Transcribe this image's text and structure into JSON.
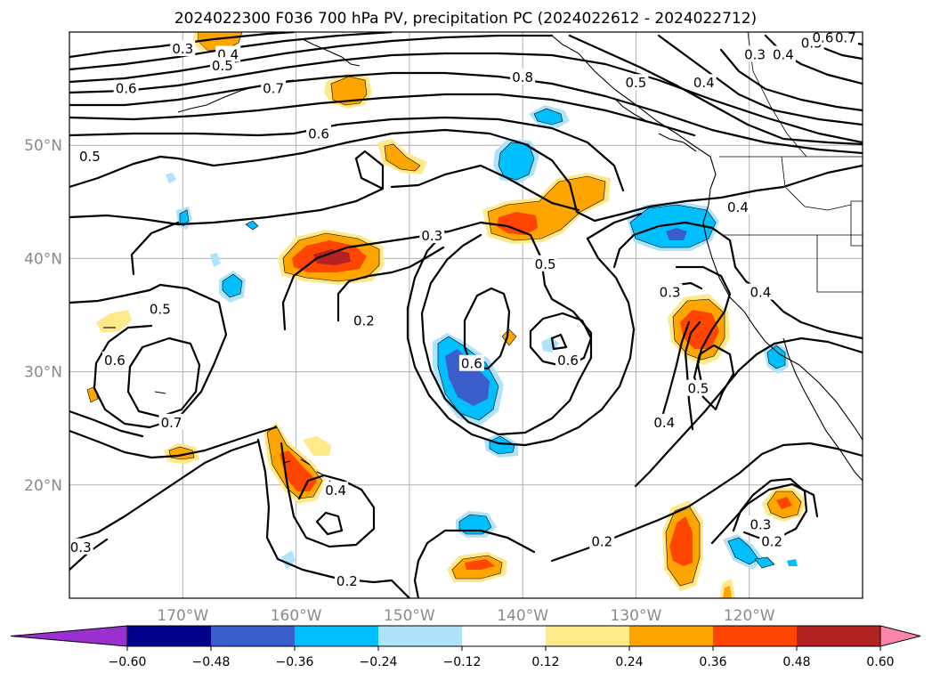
{
  "chart_data": {
    "type": "contour map with filled contours",
    "title": "2024022300 F036 700 hPa PV, precipitation PC (2024022612 - 2024022712)",
    "lon_range": [
      -180,
      -110
    ],
    "lat_range": [
      10,
      60
    ],
    "lon_ticks": [
      -170,
      -160,
      -150,
      -140,
      -130,
      -120
    ],
    "lon_tick_labels": [
      "170°W",
      "160°W",
      "150°W",
      "140°W",
      "130°W",
      "120°W"
    ],
    "lat_ticks": [
      20,
      30,
      40,
      50
    ],
    "lat_tick_labels": [
      "20°N",
      "30°N",
      "40°N",
      "50°N"
    ],
    "grid": true,
    "colorbar": {
      "orientation": "horizontal",
      "extend": "both",
      "levels": [
        -0.6,
        -0.48,
        -0.36,
        -0.24,
        -0.12,
        0.12,
        0.24,
        0.36,
        0.48,
        0.6
      ],
      "tick_labels": [
        "−0.60",
        "−0.48",
        "−0.36",
        "−0.24",
        "−0.12",
        "0.12",
        "0.24",
        "0.36",
        "0.48",
        "0.60"
      ],
      "colors": [
        "#9b30d0",
        "#00008b",
        "#3a5fcd",
        "#00bfff",
        "#aee3fa",
        "#ffffff",
        "#ffe98a",
        "#ffa500",
        "#ff4500",
        "#b22222",
        "#ff85a8"
      ]
    },
    "pv_contour_labels": [
      {
        "lon": -170,
        "lat": 58.5,
        "text": "0.3"
      },
      {
        "lon": -166,
        "lat": 58,
        "text": "0.4"
      },
      {
        "lon": -166.5,
        "lat": 57,
        "text": "0.5"
      },
      {
        "lon": -175,
        "lat": 55,
        "text": "0.6"
      },
      {
        "lon": -162,
        "lat": 55,
        "text": "0.7"
      },
      {
        "lon": -140,
        "lat": 56,
        "text": "0.8"
      },
      {
        "lon": -130,
        "lat": 55.5,
        "text": "0.5"
      },
      {
        "lon": -124,
        "lat": 55.5,
        "text": "0.4"
      },
      {
        "lon": -119.5,
        "lat": 58,
        "text": "0.3"
      },
      {
        "lon": -117,
        "lat": 58,
        "text": "0.4"
      },
      {
        "lon": -114.5,
        "lat": 59,
        "text": "0.5"
      },
      {
        "lon": -113.5,
        "lat": 59.5,
        "text": "0.6"
      },
      {
        "lon": -111.5,
        "lat": 59.5,
        "text": "0.7"
      },
      {
        "lon": -158,
        "lat": 51,
        "text": "0.6"
      },
      {
        "lon": -178.2,
        "lat": 49,
        "text": "0.5"
      },
      {
        "lon": -121,
        "lat": 44.5,
        "text": "0.4"
      },
      {
        "lon": -148,
        "lat": 42,
        "text": "0.3"
      },
      {
        "lon": -138,
        "lat": 39.5,
        "text": "0.5"
      },
      {
        "lon": -172,
        "lat": 35.5,
        "text": "0.5"
      },
      {
        "lon": -127,
        "lat": 37,
        "text": "0.3"
      },
      {
        "lon": -119,
        "lat": 37,
        "text": "0.4"
      },
      {
        "lon": -154,
        "lat": 34.5,
        "text": "0.2"
      },
      {
        "lon": -176,
        "lat": 31,
        "text": "0.6"
      },
      {
        "lon": -144.5,
        "lat": 30.7,
        "text": "0.6"
      },
      {
        "lon": -136,
        "lat": 31,
        "text": "0.6"
      },
      {
        "lon": -171,
        "lat": 25.5,
        "text": "0.7"
      },
      {
        "lon": -124.5,
        "lat": 28.5,
        "text": "0.5"
      },
      {
        "lon": -127.5,
        "lat": 25.5,
        "text": "0.4"
      },
      {
        "lon": -156.5,
        "lat": 19.5,
        "text": "0.4"
      },
      {
        "lon": -119,
        "lat": 16.5,
        "text": "0.3"
      },
      {
        "lon": -118,
        "lat": 15,
        "text": "0.2"
      },
      {
        "lon": -179,
        "lat": 14.5,
        "text": "0.3"
      },
      {
        "lon": -133,
        "lat": 15,
        "text": "0.2"
      },
      {
        "lon": -155.5,
        "lat": 11.5,
        "text": "0.2"
      }
    ],
    "precip_pc_regions": [
      {
        "lon": -166.5,
        "lat": 59,
        "value": 0.36
      },
      {
        "lon": -154,
        "lat": 55,
        "value": 0.36
      },
      {
        "lon": -150.5,
        "lat": 49,
        "value": 0.3
      },
      {
        "lon": -140.5,
        "lat": 48.5,
        "value": -0.3
      },
      {
        "lon": -137,
        "lat": 53,
        "value": -0.3
      },
      {
        "lon": -138,
        "lat": 45,
        "value": 0.36
      },
      {
        "lon": -141.5,
        "lat": 43,
        "value": 0.42
      },
      {
        "lon": -158,
        "lat": 40,
        "value": 0.5
      },
      {
        "lon": -126.5,
        "lat": 42,
        "value": -0.38
      },
      {
        "lon": -174,
        "lat": 42.5,
        "value": -0.3
      },
      {
        "lon": -164,
        "lat": 37.5,
        "value": -0.3
      },
      {
        "lon": -174.5,
        "lat": 35,
        "value": 0.18
      },
      {
        "lon": -124.5,
        "lat": 34,
        "value": 0.45
      },
      {
        "lon": -145.5,
        "lat": 29.5,
        "value": -0.45
      },
      {
        "lon": -140.5,
        "lat": 33,
        "value": 0.3
      },
      {
        "lon": -136.5,
        "lat": 32.5,
        "value": -0.2
      },
      {
        "lon": -120,
        "lat": 31.5,
        "value": -0.3
      },
      {
        "lon": -161,
        "lat": 22,
        "value": 0.42
      },
      {
        "lon": -170,
        "lat": 23,
        "value": 0.24
      },
      {
        "lon": -178,
        "lat": 28,
        "value": 0.2
      },
      {
        "lon": -143,
        "lat": 23.5,
        "value": -0.3
      },
      {
        "lon": -144.5,
        "lat": 16.5,
        "value": -0.3
      },
      {
        "lon": -144,
        "lat": 13,
        "value": 0.4
      },
      {
        "lon": -126,
        "lat": 14.5,
        "value": 0.4
      },
      {
        "lon": -118.5,
        "lat": 18,
        "value": 0.35
      },
      {
        "lon": -120.5,
        "lat": 14,
        "value": -0.25
      },
      {
        "lon": -118,
        "lat": 13,
        "value": -0.2
      },
      {
        "lon": -123.5,
        "lat": 10.5,
        "value": 0.2
      }
    ]
  }
}
